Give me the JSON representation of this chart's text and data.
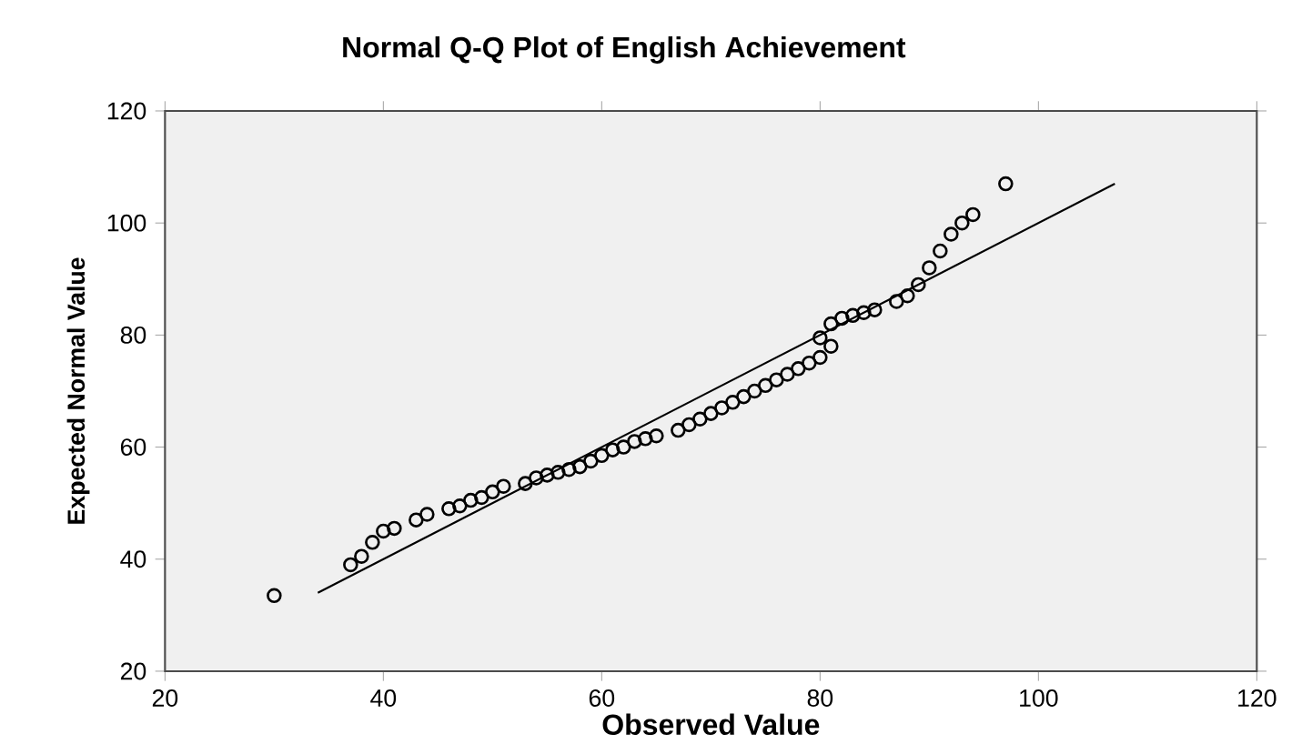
{
  "chart_data": {
    "type": "scatter",
    "title": "Normal Q-Q Plot of English Achievement",
    "xlabel": "Observed Value",
    "ylabel": "Expected Normal Value",
    "xlim": [
      20,
      120
    ],
    "ylim": [
      20,
      120
    ],
    "xticks": [
      20,
      40,
      60,
      80,
      100,
      120
    ],
    "yticks": [
      20,
      40,
      60,
      80,
      100,
      120
    ],
    "series": [
      {
        "marker": "circle",
        "color": "#000000",
        "x": [
          30,
          37,
          38,
          39,
          40,
          41,
          43,
          44,
          46,
          47,
          48,
          49,
          50,
          51,
          53,
          54,
          55,
          56,
          57,
          58,
          59,
          60,
          61,
          62,
          63,
          64,
          65,
          67,
          68,
          69,
          70,
          71,
          72,
          73,
          74,
          75,
          76,
          77,
          78,
          79,
          80,
          81,
          80,
          81,
          82,
          83,
          84,
          85,
          87,
          88,
          89,
          90,
          91,
          92,
          93,
          94,
          97
        ],
        "values": [
          33.5,
          39,
          40.5,
          43,
          45,
          45.5,
          47,
          48,
          49,
          49.5,
          50.5,
          51,
          52,
          53,
          53.5,
          54.5,
          55,
          55.5,
          56,
          56.5,
          57.5,
          58.5,
          59.5,
          60,
          61,
          61.5,
          62,
          63,
          64,
          65,
          66,
          67,
          68,
          69,
          70,
          71,
          72,
          73,
          74,
          75,
          76,
          78,
          79.5,
          82,
          83,
          83.5,
          84,
          84.5,
          86,
          87,
          89,
          92,
          95,
          98,
          100,
          101.5,
          107
        ]
      },
      {
        "type": "line",
        "marker": "none",
        "color": "#000000",
        "x": [
          34,
          107
        ],
        "values": [
          34,
          107
        ]
      }
    ]
  }
}
